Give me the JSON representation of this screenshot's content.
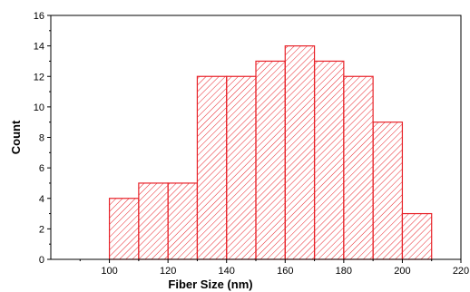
{
  "chart_data": {
    "type": "bar",
    "subtype": "histogram",
    "title": "",
    "xlabel": "Fiber Size (nm)",
    "ylabel": "Count",
    "bins": [
      {
        "start": 100,
        "end": 110,
        "count": 4
      },
      {
        "start": 110,
        "end": 120,
        "count": 5
      },
      {
        "start": 120,
        "end": 130,
        "count": 5
      },
      {
        "start": 130,
        "end": 140,
        "count": 12
      },
      {
        "start": 140,
        "end": 150,
        "count": 12
      },
      {
        "start": 150,
        "end": 160,
        "count": 13
      },
      {
        "start": 160,
        "end": 170,
        "count": 14
      },
      {
        "start": 170,
        "end": 180,
        "count": 13
      },
      {
        "start": 180,
        "end": 190,
        "count": 12
      },
      {
        "start": 190,
        "end": 200,
        "count": 9
      },
      {
        "start": 200,
        "end": 210,
        "count": 3
      }
    ],
    "xlim": [
      80,
      220
    ],
    "ylim": [
      0,
      16
    ],
    "x_ticks": [
      100,
      120,
      140,
      160,
      180,
      200,
      220
    ],
    "y_ticks": [
      0,
      2,
      4,
      6,
      8,
      10,
      12,
      14,
      16
    ],
    "grid": false,
    "legend": "none",
    "colors": {
      "bar_stroke": "#e8232a",
      "hatch": "#e8232a",
      "bar_fill": "#ffffff",
      "axis": "#000000"
    }
  }
}
